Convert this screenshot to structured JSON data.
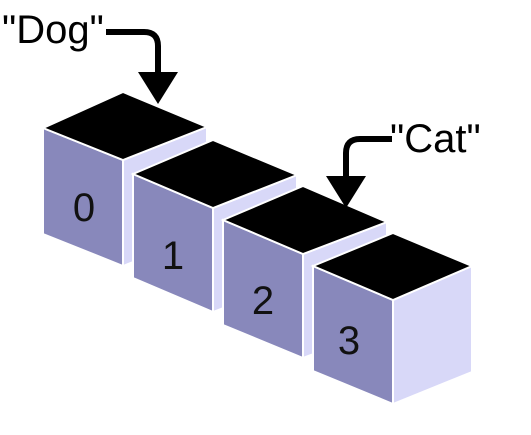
{
  "diagram": {
    "cells": [
      {
        "index": "0"
      },
      {
        "index": "1"
      },
      {
        "index": "2"
      },
      {
        "index": "3"
      }
    ],
    "pointers": [
      {
        "label": "\"Dog\"",
        "target_index": 0
      },
      {
        "label": "\"Cat\"",
        "target_index": 2
      }
    ]
  },
  "colors": {
    "front_face": "#8888bb",
    "side_face": "#d8d8f8",
    "top_face": "#000000",
    "edge": "#ffffff",
    "arrow": "#000000",
    "background": "#ffffff"
  }
}
